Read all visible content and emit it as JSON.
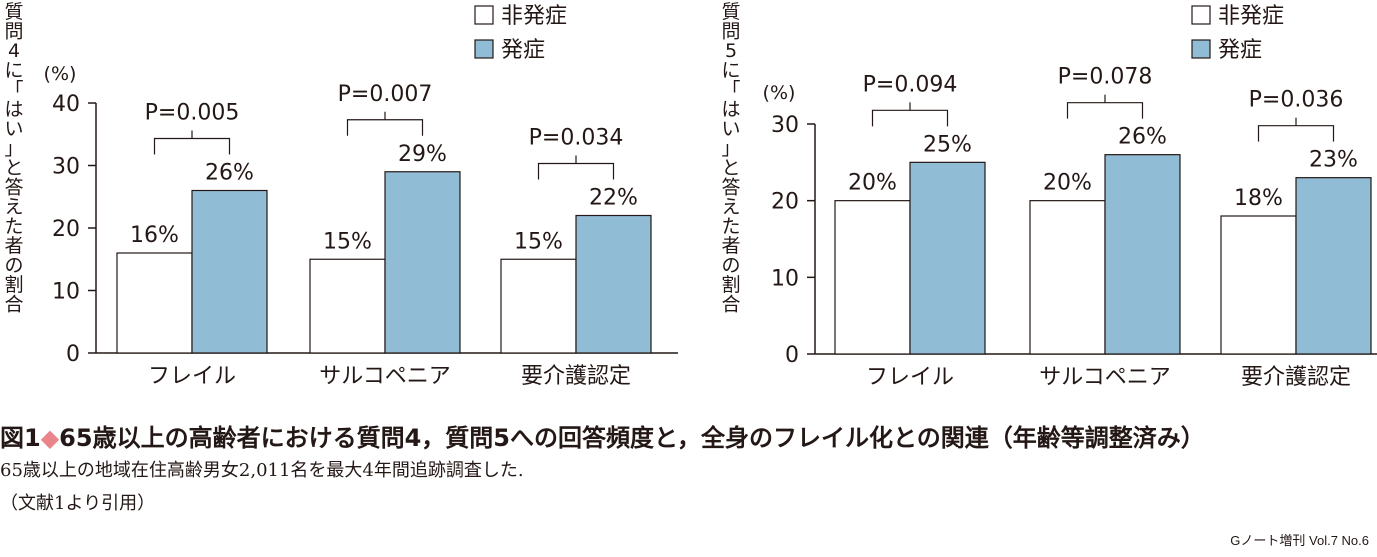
{
  "chart_data": [
    {
      "type": "bar",
      "ylabel": "質問4に「はい」と答えた者の割合",
      "unit": "(%)",
      "ylim": [
        0,
        40
      ],
      "yticks": [
        "0",
        "10",
        "20",
        "30",
        "40"
      ],
      "categories": [
        "フレイル",
        "サルコペニア",
        "要介護認定"
      ],
      "series": [
        {
          "name": "非発症",
          "values": [
            16,
            15,
            15
          ],
          "labels": [
            "16%",
            "15%",
            "15%"
          ],
          "color": "#ffffff"
        },
        {
          "name": "発症",
          "values": [
            26,
            29,
            22
          ],
          "labels": [
            "26%",
            "29%",
            "22%"
          ],
          "color": "#91bcd6"
        }
      ],
      "p_values": [
        "P=0.005",
        "P=0.007",
        "P=0.034"
      ],
      "legend": "top-right"
    },
    {
      "type": "bar",
      "ylabel": "質問5に「はい」と答えた者の割合",
      "unit": "(%)",
      "ylim": [
        0,
        30
      ],
      "yticks": [
        "0",
        "10",
        "20",
        "30"
      ],
      "categories": [
        "フレイル",
        "サルコペニア",
        "要介護認定"
      ],
      "series": [
        {
          "name": "非発症",
          "values": [
            20,
            20,
            18
          ],
          "labels": [
            "20%",
            "20%",
            "18%"
          ],
          "color": "#ffffff"
        },
        {
          "name": "発症",
          "values": [
            25,
            26,
            23
          ],
          "labels": [
            "25%",
            "26%",
            "23%"
          ],
          "color": "#91bcd6"
        }
      ],
      "p_values": [
        "P=0.094",
        "P=0.078",
        "P=0.036"
      ],
      "legend": "top-right"
    }
  ],
  "caption": {
    "fig_label": "図1",
    "diamond": "◆",
    "title": "65歳以上の高齢者における質問4，質問5への回答頻度と，全身のフレイル化との関連（年齢等調整済み）",
    "note": "65歳以上の地域在住高齢男女2,011名を最大4年間追跡調査した.",
    "source": "（文献1より引用）"
  },
  "footer": "Gノート増刊 Vol.7 No.6"
}
